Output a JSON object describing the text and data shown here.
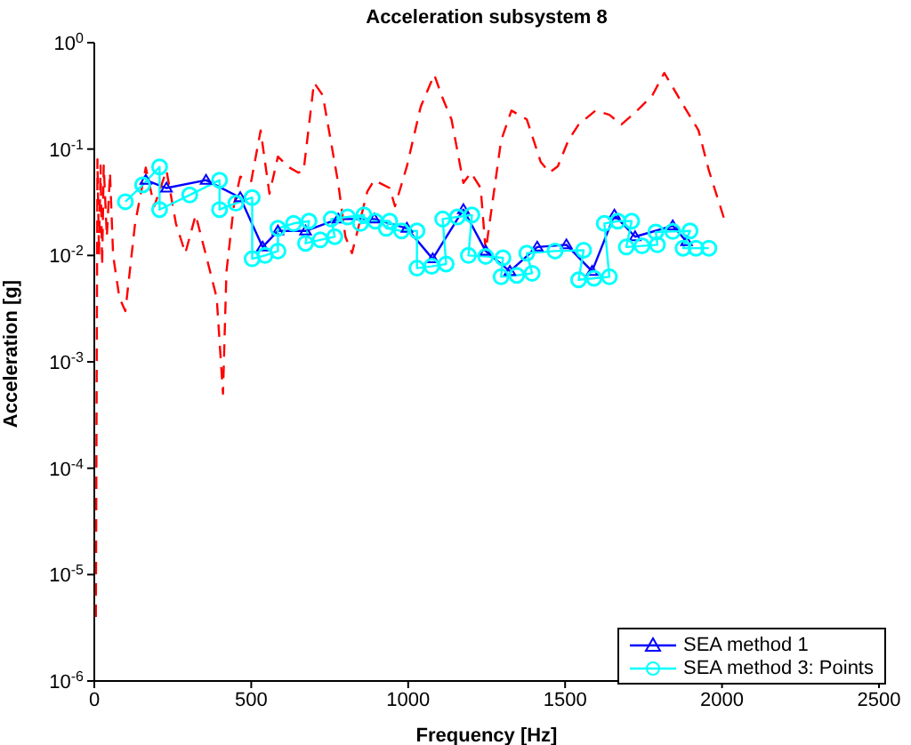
{
  "chart_data": {
    "type": "line",
    "title": "Acceleration subsystem 8",
    "xlabel": "Frequency  [Hz]",
    "ylabel": "Acceleration  [g]",
    "log": "y",
    "grid": false,
    "legend": "bottom right",
    "xlim": [
      0,
      2500
    ],
    "xticks": [
      0,
      500,
      1000,
      1500,
      2000,
      2500
    ],
    "ylim": [
      1e-06,
      1
    ],
    "yticks": [
      {
        "value": 1e-06,
        "label": "10$^{-6}$"
      },
      {
        "value": 1e-05,
        "label": "10$^{-5}$"
      },
      {
        "value": 0.0001,
        "label": "10$^{-4}$"
      },
      {
        "value": 0.001,
        "label": "10$^{-3}$"
      },
      {
        "value": 0.01,
        "label": "10$^{-2}$"
      },
      {
        "value": 0.1,
        "label": "10$^{-1}$"
      },
      {
        "value": 1,
        "label": "10$^{0}$"
      }
    ],
    "series": [
      {
        "name": "SEA method 1",
        "color": "#0000ff",
        "marker": "triangle",
        "line_style": "solid",
        "x": [
          164,
          230,
          356,
          465,
          536,
          585,
          673,
          777,
          892,
          996,
          1078,
          1176,
          1247,
          1324,
          1411,
          1504,
          1586,
          1657,
          1723,
          1843,
          1887
        ],
        "values": [
          0.051,
          0.043,
          0.051,
          0.035,
          0.012,
          0.017,
          0.017,
          0.022,
          0.022,
          0.018,
          0.0093,
          0.027,
          0.011,
          0.0071,
          0.012,
          0.0126,
          0.0071,
          0.024,
          0.015,
          0.019,
          0.0135
        ]
      },
      {
        "color": "#ff0000",
        "marker": "none",
        "line_style": "dashed",
        "x": [
          5,
          10,
          15,
          20,
          25,
          30,
          40,
          50,
          60,
          80,
          99,
          130,
          164,
          191,
          230,
          260,
          290,
          323,
          356,
          390,
          410,
          421,
          445,
          465,
          500,
          530,
          558,
          585,
          618,
          650,
          667,
          700,
          728,
          777,
          800,
          821,
          848,
          870,
          892,
          941,
          958,
          996,
          1040,
          1083,
          1110,
          1138,
          1176,
          1200,
          1231,
          1247,
          1296,
          1329,
          1378,
          1422,
          1450,
          1477,
          1510,
          1543,
          1597,
          1641,
          1679,
          1723,
          1778,
          1816,
          1876,
          1925,
          1958,
          2007
        ],
        "values": [
          4e-06,
          0.08,
          0.01,
          0.07,
          0.008,
          0.07,
          0.015,
          0.06,
          0.01,
          0.004,
          0.003,
          0.02,
          0.067,
          0.029,
          0.063,
          0.02,
          0.0105,
          0.024,
          0.01,
          0.004,
          0.0005,
          0.007,
          0.03,
          0.055,
          0.05,
          0.15,
          0.038,
          0.085,
          0.068,
          0.06,
          0.063,
          0.42,
          0.32,
          0.048,
          0.015,
          0.0105,
          0.022,
          0.04,
          0.051,
          0.043,
          0.029,
          0.069,
          0.25,
          0.5,
          0.3,
          0.19,
          0.048,
          0.06,
          0.043,
          0.011,
          0.12,
          0.23,
          0.19,
          0.076,
          0.06,
          0.069,
          0.12,
          0.17,
          0.23,
          0.21,
          0.17,
          0.22,
          0.32,
          0.52,
          0.26,
          0.15,
          0.063,
          0.022
        ]
      },
      {
        "name": "SEA method 3: Points",
        "color": "#00ffff",
        "marker": "circle",
        "line_style": "solid",
        "x": [
          99,
          154,
          208,
          208,
          304,
          399,
          399,
          451,
          503,
          503,
          544,
          585,
          585,
          635,
          684,
          673,
          720,
          766,
          755,
          807,
          859,
          848,
          895,
          941,
          930,
          979,
          1028,
          1028,
          1075,
          1121,
          1110,
          1157,
          1203,
          1192,
          1247,
          1302,
          1296,
          1346,
          1395,
          1378,
          1468,
          1559,
          1543,
          1592,
          1641,
          1625,
          1668,
          1712,
          1695,
          1745,
          1794,
          1789,
          1843,
          1898,
          1876,
          1917,
          1958
        ],
        "values": [
          0.032,
          0.046,
          0.068,
          0.027,
          0.037,
          0.051,
          0.027,
          0.031,
          0.035,
          0.0093,
          0.01,
          0.011,
          0.018,
          0.02,
          0.021,
          0.013,
          0.014,
          0.015,
          0.022,
          0.023,
          0.024,
          0.02,
          0.021,
          0.021,
          0.018,
          0.017,
          0.017,
          0.0076,
          0.0079,
          0.0083,
          0.022,
          0.023,
          0.024,
          0.01,
          0.0098,
          0.0095,
          0.0063,
          0.0065,
          0.0068,
          0.0105,
          0.011,
          0.0112,
          0.0059,
          0.0061,
          0.0063,
          0.02,
          0.021,
          0.021,
          0.012,
          0.0123,
          0.0126,
          0.0166,
          0.0168,
          0.017,
          0.0117,
          0.0117,
          0.0117
        ]
      }
    ]
  }
}
